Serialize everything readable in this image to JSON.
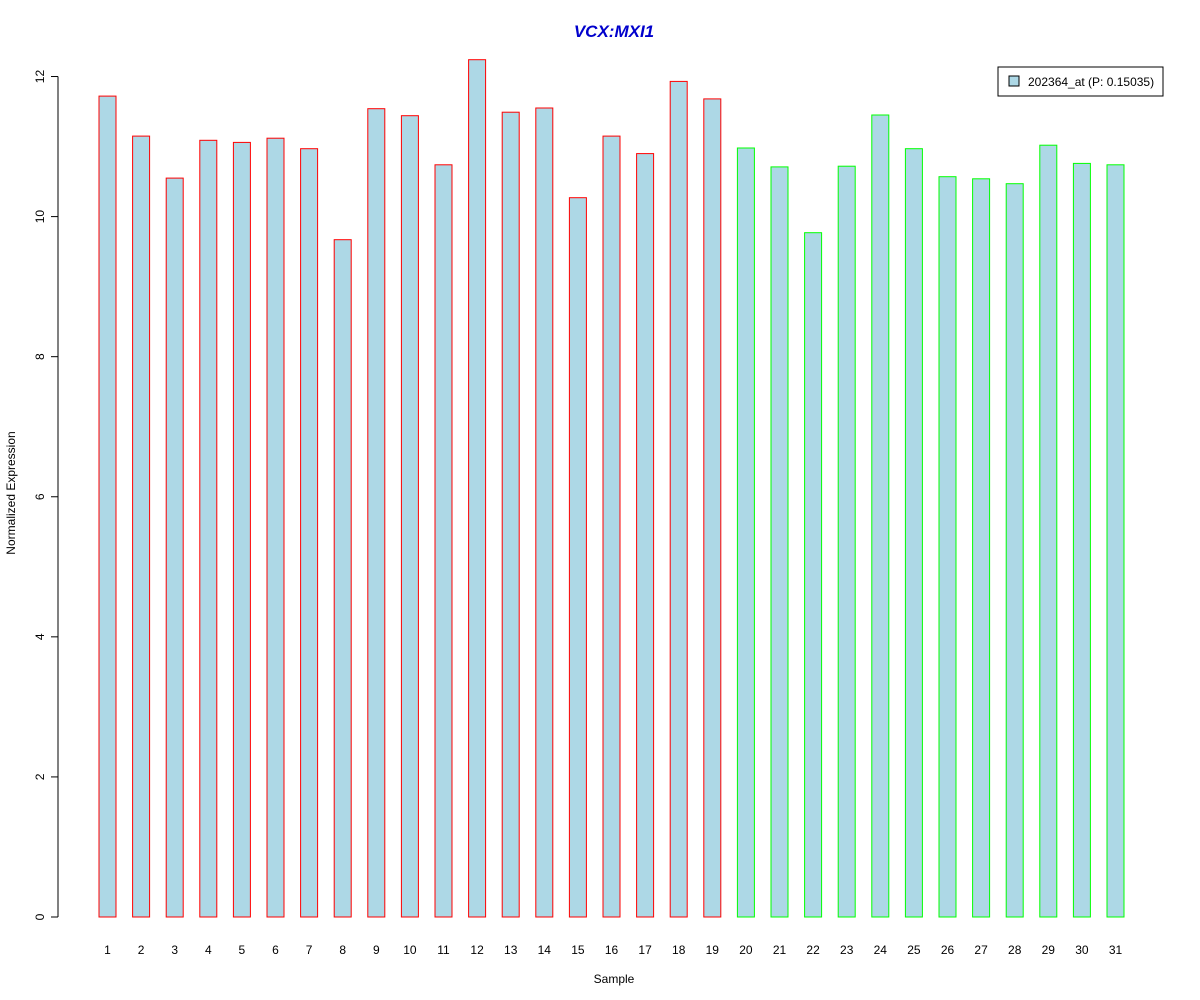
{
  "colors": {
    "title": "#0000cc",
    "bar_fill": "#add8e6",
    "group1_border": "#ff0000",
    "group2_border": "#00ff00",
    "axis": "#000000",
    "background": "#ffffff"
  },
  "chart_data": {
    "type": "bar",
    "title": "VCX:MXI1",
    "xlabel": "Sample",
    "ylabel": "Normalized Expression",
    "ylim": [
      0,
      12.2
    ],
    "yticks": [
      0,
      2,
      4,
      6,
      8,
      10,
      12
    ],
    "ytick_labels": [
      "0",
      "2",
      "4",
      "6",
      "8",
      "10",
      "12"
    ],
    "categories": [
      "1",
      "2",
      "3",
      "4",
      "5",
      "6",
      "7",
      "8",
      "9",
      "10",
      "11",
      "12",
      "13",
      "14",
      "15",
      "16",
      "17",
      "18",
      "19",
      "20",
      "21",
      "22",
      "23",
      "24",
      "25",
      "26",
      "27",
      "28",
      "29",
      "30",
      "31"
    ],
    "series": [
      {
        "name": "202364_at (P: 0.15035)",
        "values": [
          11.72,
          11.15,
          10.55,
          11.09,
          11.06,
          11.12,
          10.97,
          9.67,
          11.54,
          11.44,
          10.74,
          12.24,
          11.49,
          11.55,
          10.27,
          11.15,
          10.9,
          11.93,
          11.68,
          10.98,
          10.71,
          9.77,
          10.72,
          11.45,
          10.97,
          10.57,
          10.54,
          10.47,
          11.02,
          10.76,
          10.74
        ]
      }
    ],
    "groups": [
      1,
      1,
      1,
      1,
      1,
      1,
      1,
      1,
      1,
      1,
      1,
      1,
      1,
      1,
      1,
      1,
      1,
      1,
      1,
      2,
      2,
      2,
      2,
      2,
      2,
      2,
      2,
      2,
      2,
      2,
      2
    ],
    "legend": {
      "placement": "top-right",
      "label": "202364_at (P: 0.15035)"
    },
    "grid": false
  }
}
